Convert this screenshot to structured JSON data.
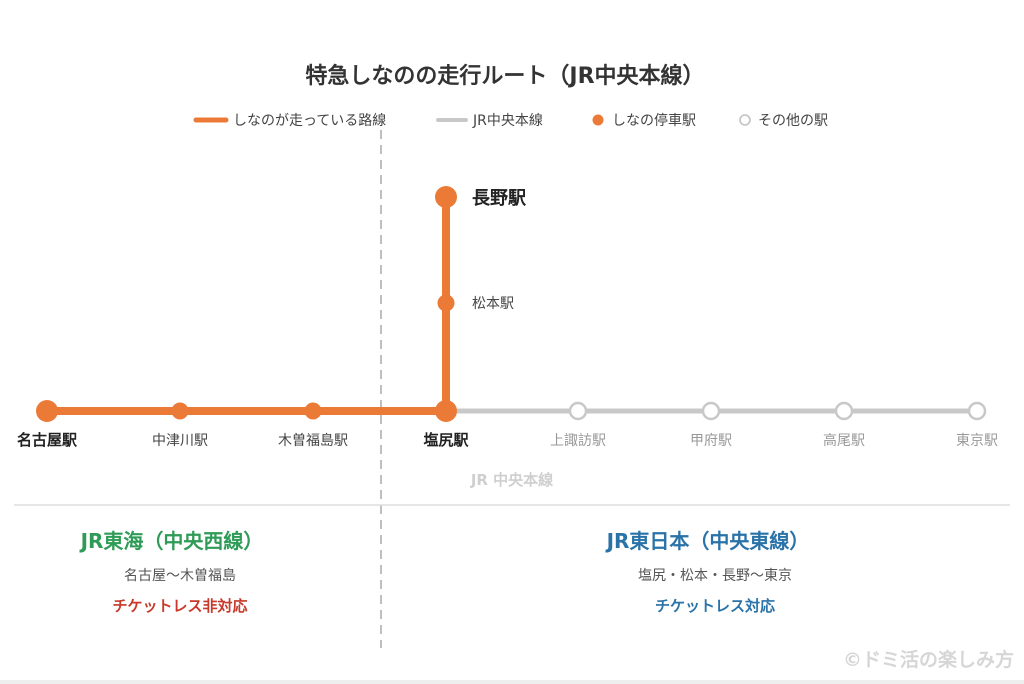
{
  "title": "特急しなのの走行ルート（JR中央本線）",
  "legend": [
    {
      "label": "しなのが走っている路線",
      "symbol": "line",
      "color": "#ec7a37"
    },
    {
      "label": "JR中央本線",
      "symbol": "line",
      "color": "#c8c8c8"
    },
    {
      "label": "しなの停車駅",
      "symbol": "filled-circle",
      "color": "#ec7a37"
    },
    {
      "label": "その他の駅",
      "symbol": "hollow-circle",
      "color": "#c8c8c8"
    }
  ],
  "colors": {
    "shinano": "#ec7a37",
    "chuo": "#c8c8c8",
    "jr_central": "#2e9b56",
    "jr_east": "#2a73a8",
    "not_supported": "#c8392b"
  },
  "stations_main": [
    {
      "name": "名古屋駅",
      "type": "stop",
      "major": true
    },
    {
      "name": "中津川駅",
      "type": "stop",
      "major": false
    },
    {
      "name": "木曽福島駅",
      "type": "stop",
      "major": false
    },
    {
      "name": "塩尻駅",
      "type": "stop",
      "major": true
    },
    {
      "name": "上諏訪駅",
      "type": "other",
      "major": false
    },
    {
      "name": "甲府駅",
      "type": "other",
      "major": false
    },
    {
      "name": "高尾駅",
      "type": "other",
      "major": false
    },
    {
      "name": "東京駅",
      "type": "other",
      "major": false
    }
  ],
  "stations_branch": [
    {
      "name": "長野駅",
      "type": "stop",
      "major": true
    },
    {
      "name": "松本駅",
      "type": "stop",
      "major": false
    }
  ],
  "line_label": "JR 中央本線",
  "sections": {
    "left": {
      "company": "JR東海（中央西線）",
      "range": "名古屋〜木曽福島",
      "ticketless": "チケットレス非対応"
    },
    "right": {
      "company": "JR東日本（中央東線）",
      "range": "塩尻・松本・長野〜東京",
      "ticketless": "チケットレス対応"
    }
  },
  "watermark": "©ドミ活の楽しみ方"
}
